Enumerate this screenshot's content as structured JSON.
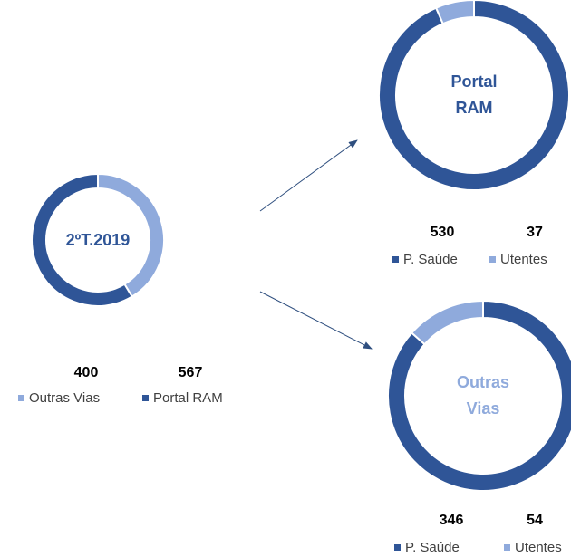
{
  "chart_data": [
    {
      "type": "pie",
      "title": "2ºT.2019",
      "title_color": "#2f5597",
      "categories": [
        "Outras Vias",
        "Portal RAM"
      ],
      "values": [
        400,
        567
      ],
      "colors": [
        "#8faadc",
        "#2f5597"
      ]
    },
    {
      "type": "pie",
      "title": "Portal RAM",
      "title_color": "#2f5597",
      "categories": [
        "P. Saúde",
        "Utentes"
      ],
      "values": [
        530,
        37
      ],
      "colors": [
        "#2f5597",
        "#8faadc"
      ]
    },
    {
      "type": "pie",
      "title": "Outras Vias",
      "title_color": "#8faadc",
      "categories": [
        "P. Saúde",
        "Utentes"
      ],
      "values": [
        346,
        54
      ],
      "colors": [
        "#2f5597",
        "#8faadc"
      ]
    }
  ]
}
